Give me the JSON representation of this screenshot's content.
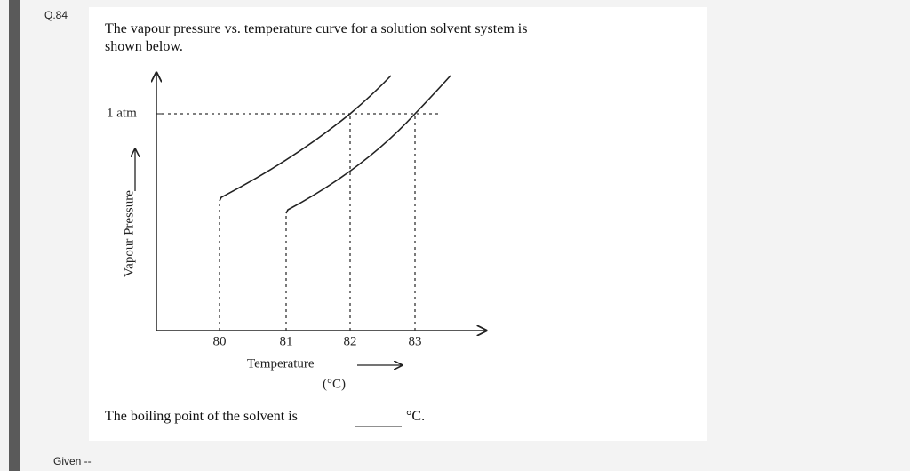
{
  "question": {
    "number": "Q.84",
    "text_line_1": "The vapour pressure vs. temperature curve for a solution solvent system is",
    "text_line_2": "shown below.",
    "figure": {
      "y_label": "Vapour Pressure",
      "y_mark": "1 atm",
      "x_ticks": [
        "80",
        "81",
        "82",
        "83"
      ],
      "x_label": "Temperature",
      "x_unit": "(°C)"
    },
    "prompt": "The boiling point of the solvent is",
    "prompt_unit": "°C."
  },
  "footer": {
    "given": "Given --"
  }
}
